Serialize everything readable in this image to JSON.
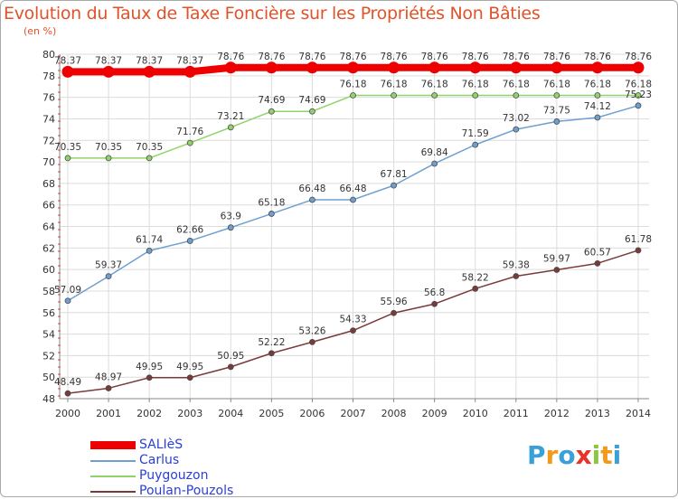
{
  "title": "Evolution du Taux de Taxe Foncière sur les Propriétés Non Bâties",
  "subtitle": "(en %)",
  "logo": {
    "letters": [
      "P",
      "r",
      "o",
      "x",
      "i",
      "t",
      "i"
    ],
    "colors": [
      "#3aa0d8",
      "#f29a1c",
      "#3aa0d8",
      "#e8332a",
      "#8cc63f",
      "#f29a1c",
      "#3aa0d8"
    ]
  },
  "chart_data": {
    "type": "line",
    "x": [
      "2000",
      "2001",
      "2002",
      "2003",
      "2004",
      "2005",
      "2006",
      "2007",
      "2008",
      "2009",
      "2010",
      "2011",
      "2012",
      "2013",
      "2014"
    ],
    "yticks": [
      "48",
      "50",
      "52",
      "54",
      "56",
      "58",
      "60",
      "62",
      "64",
      "66",
      "68",
      "70",
      "72",
      "74",
      "76",
      "78",
      "80"
    ],
    "ylim": [
      48,
      80
    ],
    "grid": true,
    "legend_position": "bottom-left",
    "series": [
      {
        "name": "SALIèS",
        "color": "#ee0000",
        "width": 8,
        "values": [
          78.37,
          78.37,
          78.37,
          78.37,
          78.76,
          78.76,
          78.76,
          78.76,
          78.76,
          78.76,
          78.76,
          78.76,
          78.76,
          78.76,
          78.76
        ],
        "labels": [
          "78.37",
          "78.37",
          "78.37",
          "78.37",
          "78.76",
          "78.76",
          "78.76",
          "78.76",
          "78.76",
          "78.76",
          "78.76",
          "78.76",
          "78.76",
          "78.76",
          "78.76"
        ]
      },
      {
        "name": "Carlus",
        "color": "#6e9fd0",
        "width": 1.5,
        "values": [
          57.09,
          59.37,
          61.74,
          62.66,
          63.9,
          65.18,
          66.48,
          66.48,
          67.81,
          69.84,
          71.59,
          73.02,
          73.75,
          74.12,
          75.23
        ],
        "labels": [
          "57.09",
          "59.37",
          "61.74",
          "62.66",
          "63.9",
          "65.18",
          "66.48",
          "66.48",
          "67.81",
          "69.84",
          "71.59",
          "73.02",
          "73.75",
          "74.12",
          "75.23"
        ]
      },
      {
        "name": "Puygouzon",
        "color": "#8fd36a",
        "width": 1.5,
        "values": [
          70.35,
          70.35,
          70.35,
          71.76,
          73.21,
          74.69,
          74.69,
          76.18,
          76.18,
          76.18,
          76.18,
          76.18,
          76.18,
          76.18,
          76.18
        ],
        "labels": [
          "70.35",
          "70.35",
          "70.35",
          "71.76",
          "73.21",
          "74.69",
          "74.69",
          "76.18",
          "76.18",
          "76.18",
          "76.18",
          "76.18",
          "76.18",
          "76.18",
          "76.18"
        ]
      },
      {
        "name": "Poulan-Pouzols",
        "color": "#7a3a3a",
        "width": 1.5,
        "values": [
          48.49,
          48.97,
          49.95,
          49.95,
          50.95,
          52.22,
          53.26,
          54.33,
          55.96,
          56.8,
          58.22,
          59.38,
          59.97,
          60.57,
          61.78
        ],
        "labels": [
          "48.49",
          "48.97",
          "49.95",
          "49.95",
          "50.95",
          "52.22",
          "53.26",
          "54.33",
          "55.96",
          "56.8",
          "58.22",
          "59.38",
          "59.97",
          "60.57",
          "61.78"
        ]
      }
    ]
  }
}
